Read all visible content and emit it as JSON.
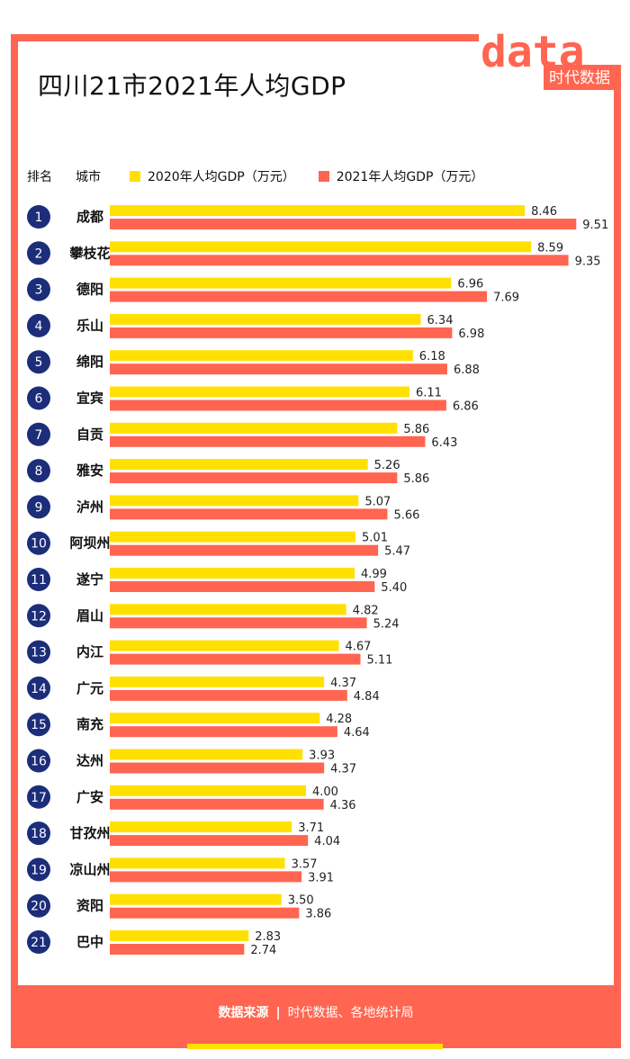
{
  "title": "四川21市2021年人均GDP",
  "logo": {
    "text": "data",
    "tag": "时代数据"
  },
  "header": {
    "rank": "排名",
    "city": "城市"
  },
  "footer": {
    "label": "数据来源",
    "source": "时代数据、各地统计局"
  },
  "colors": {
    "accent": "#ff6550",
    "y2020": "#ffe000",
    "y2021": "#ff6550",
    "badge": "#1c2d7a"
  },
  "chart_data": {
    "type": "bar",
    "title": "四川21市2021年人均GDP",
    "xlabel": "",
    "ylabel": "",
    "categories": [
      "成都",
      "攀枝花",
      "德阳",
      "乐山",
      "绵阳",
      "宜宾",
      "自贡",
      "雅安",
      "泸州",
      "阿坝州",
      "遂宁",
      "眉山",
      "内江",
      "广元",
      "南充",
      "达州",
      "广安",
      "甘孜州",
      "凉山州",
      "资阳",
      "巴中"
    ],
    "ranks": [
      "1",
      "2",
      "3",
      "4",
      "5",
      "6",
      "7",
      "8",
      "9",
      "10",
      "11",
      "12",
      "13",
      "14",
      "15",
      "16",
      "17",
      "18",
      "19",
      "20",
      "21"
    ],
    "series": [
      {
        "name": "2020年人均GDP（万元）",
        "values": [
          8.46,
          8.59,
          6.96,
          6.34,
          6.18,
          6.11,
          5.86,
          5.26,
          5.07,
          5.01,
          4.99,
          4.82,
          4.67,
          4.37,
          4.28,
          3.93,
          4.0,
          3.71,
          3.57,
          3.5,
          2.83
        ]
      },
      {
        "name": "2021年人均GDP（万元）",
        "values": [
          9.51,
          9.35,
          7.69,
          6.98,
          6.88,
          6.86,
          6.43,
          5.86,
          5.66,
          5.47,
          5.4,
          5.24,
          5.11,
          4.84,
          4.64,
          4.37,
          4.36,
          4.04,
          3.91,
          3.86,
          2.74
        ]
      }
    ],
    "xlim": [
      0,
      10
    ]
  }
}
